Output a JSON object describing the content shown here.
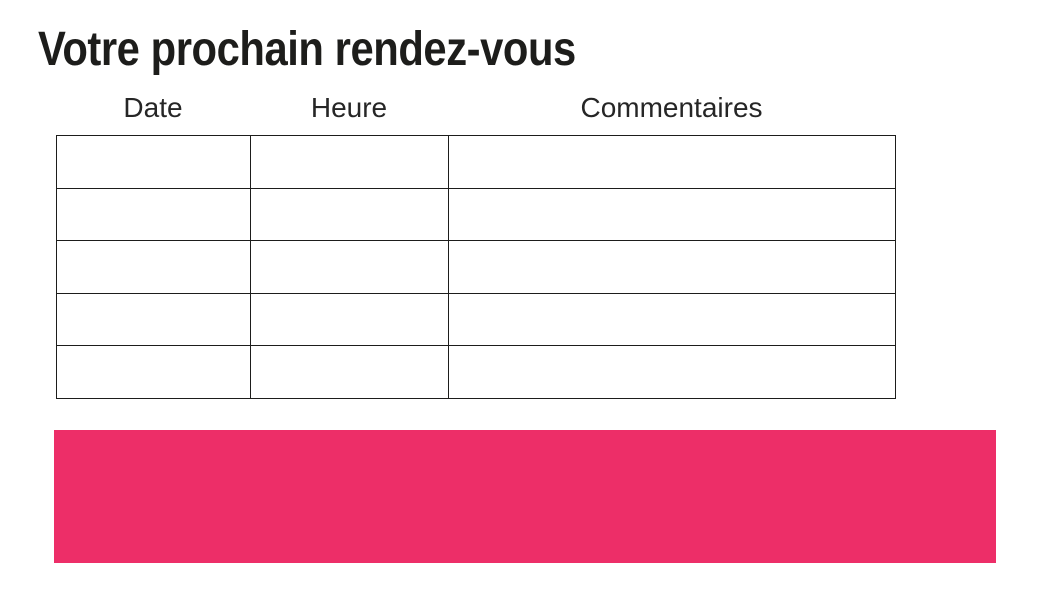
{
  "page": {
    "title": "Votre prochain rendez-vous"
  },
  "table": {
    "columns": [
      {
        "label": "Date"
      },
      {
        "label": "Heure"
      },
      {
        "label": "Commentaires"
      }
    ],
    "rows": [
      [
        "",
        "",
        ""
      ],
      [
        "",
        "",
        ""
      ],
      [
        "",
        "",
        ""
      ],
      [
        "",
        "",
        ""
      ],
      [
        "",
        "",
        ""
      ]
    ]
  },
  "colors": {
    "accent_pink": "#ED2E68",
    "text": "#1D1D1B",
    "border": "#1D1D1B"
  }
}
